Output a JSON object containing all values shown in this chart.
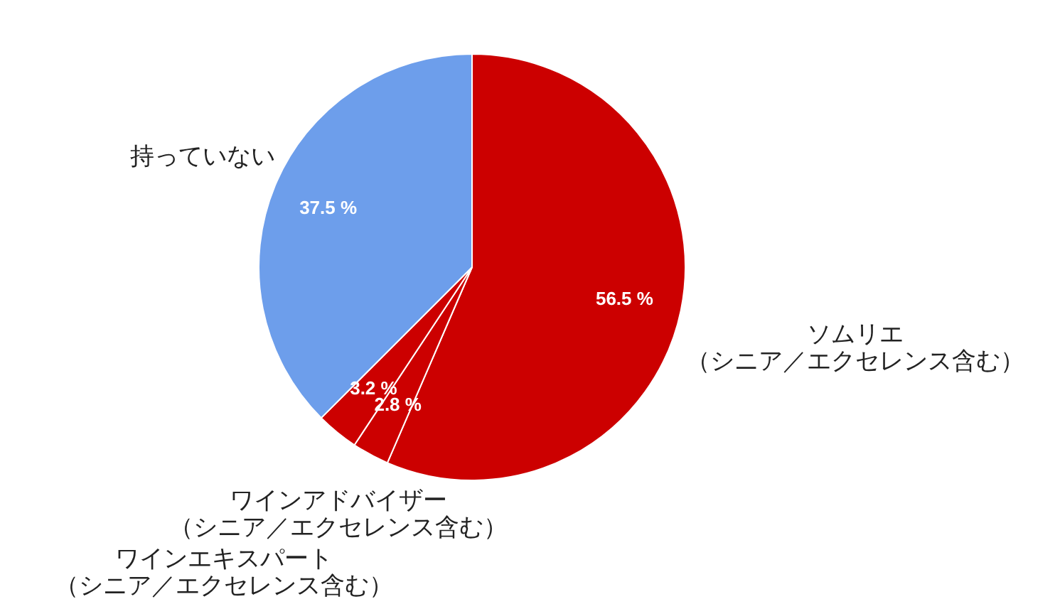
{
  "chart_data": {
    "type": "pie",
    "categories": [
      "ソムリエ（シニア／エクセレンス含む）",
      "ワインアドバイザー（シニア／エクセレンス含む）",
      "ワインエキスパート（シニア／エクセレンス含む）",
      "持っていない"
    ],
    "values": [
      56.5,
      2.8,
      3.2,
      37.5
    ],
    "colors": [
      "#cc0000",
      "#cc0000",
      "#cc0000",
      "#6d9eeb"
    ],
    "value_labels": [
      "56.5 %",
      "2.8 %",
      "3.2 %",
      "37.5 %"
    ]
  }
}
